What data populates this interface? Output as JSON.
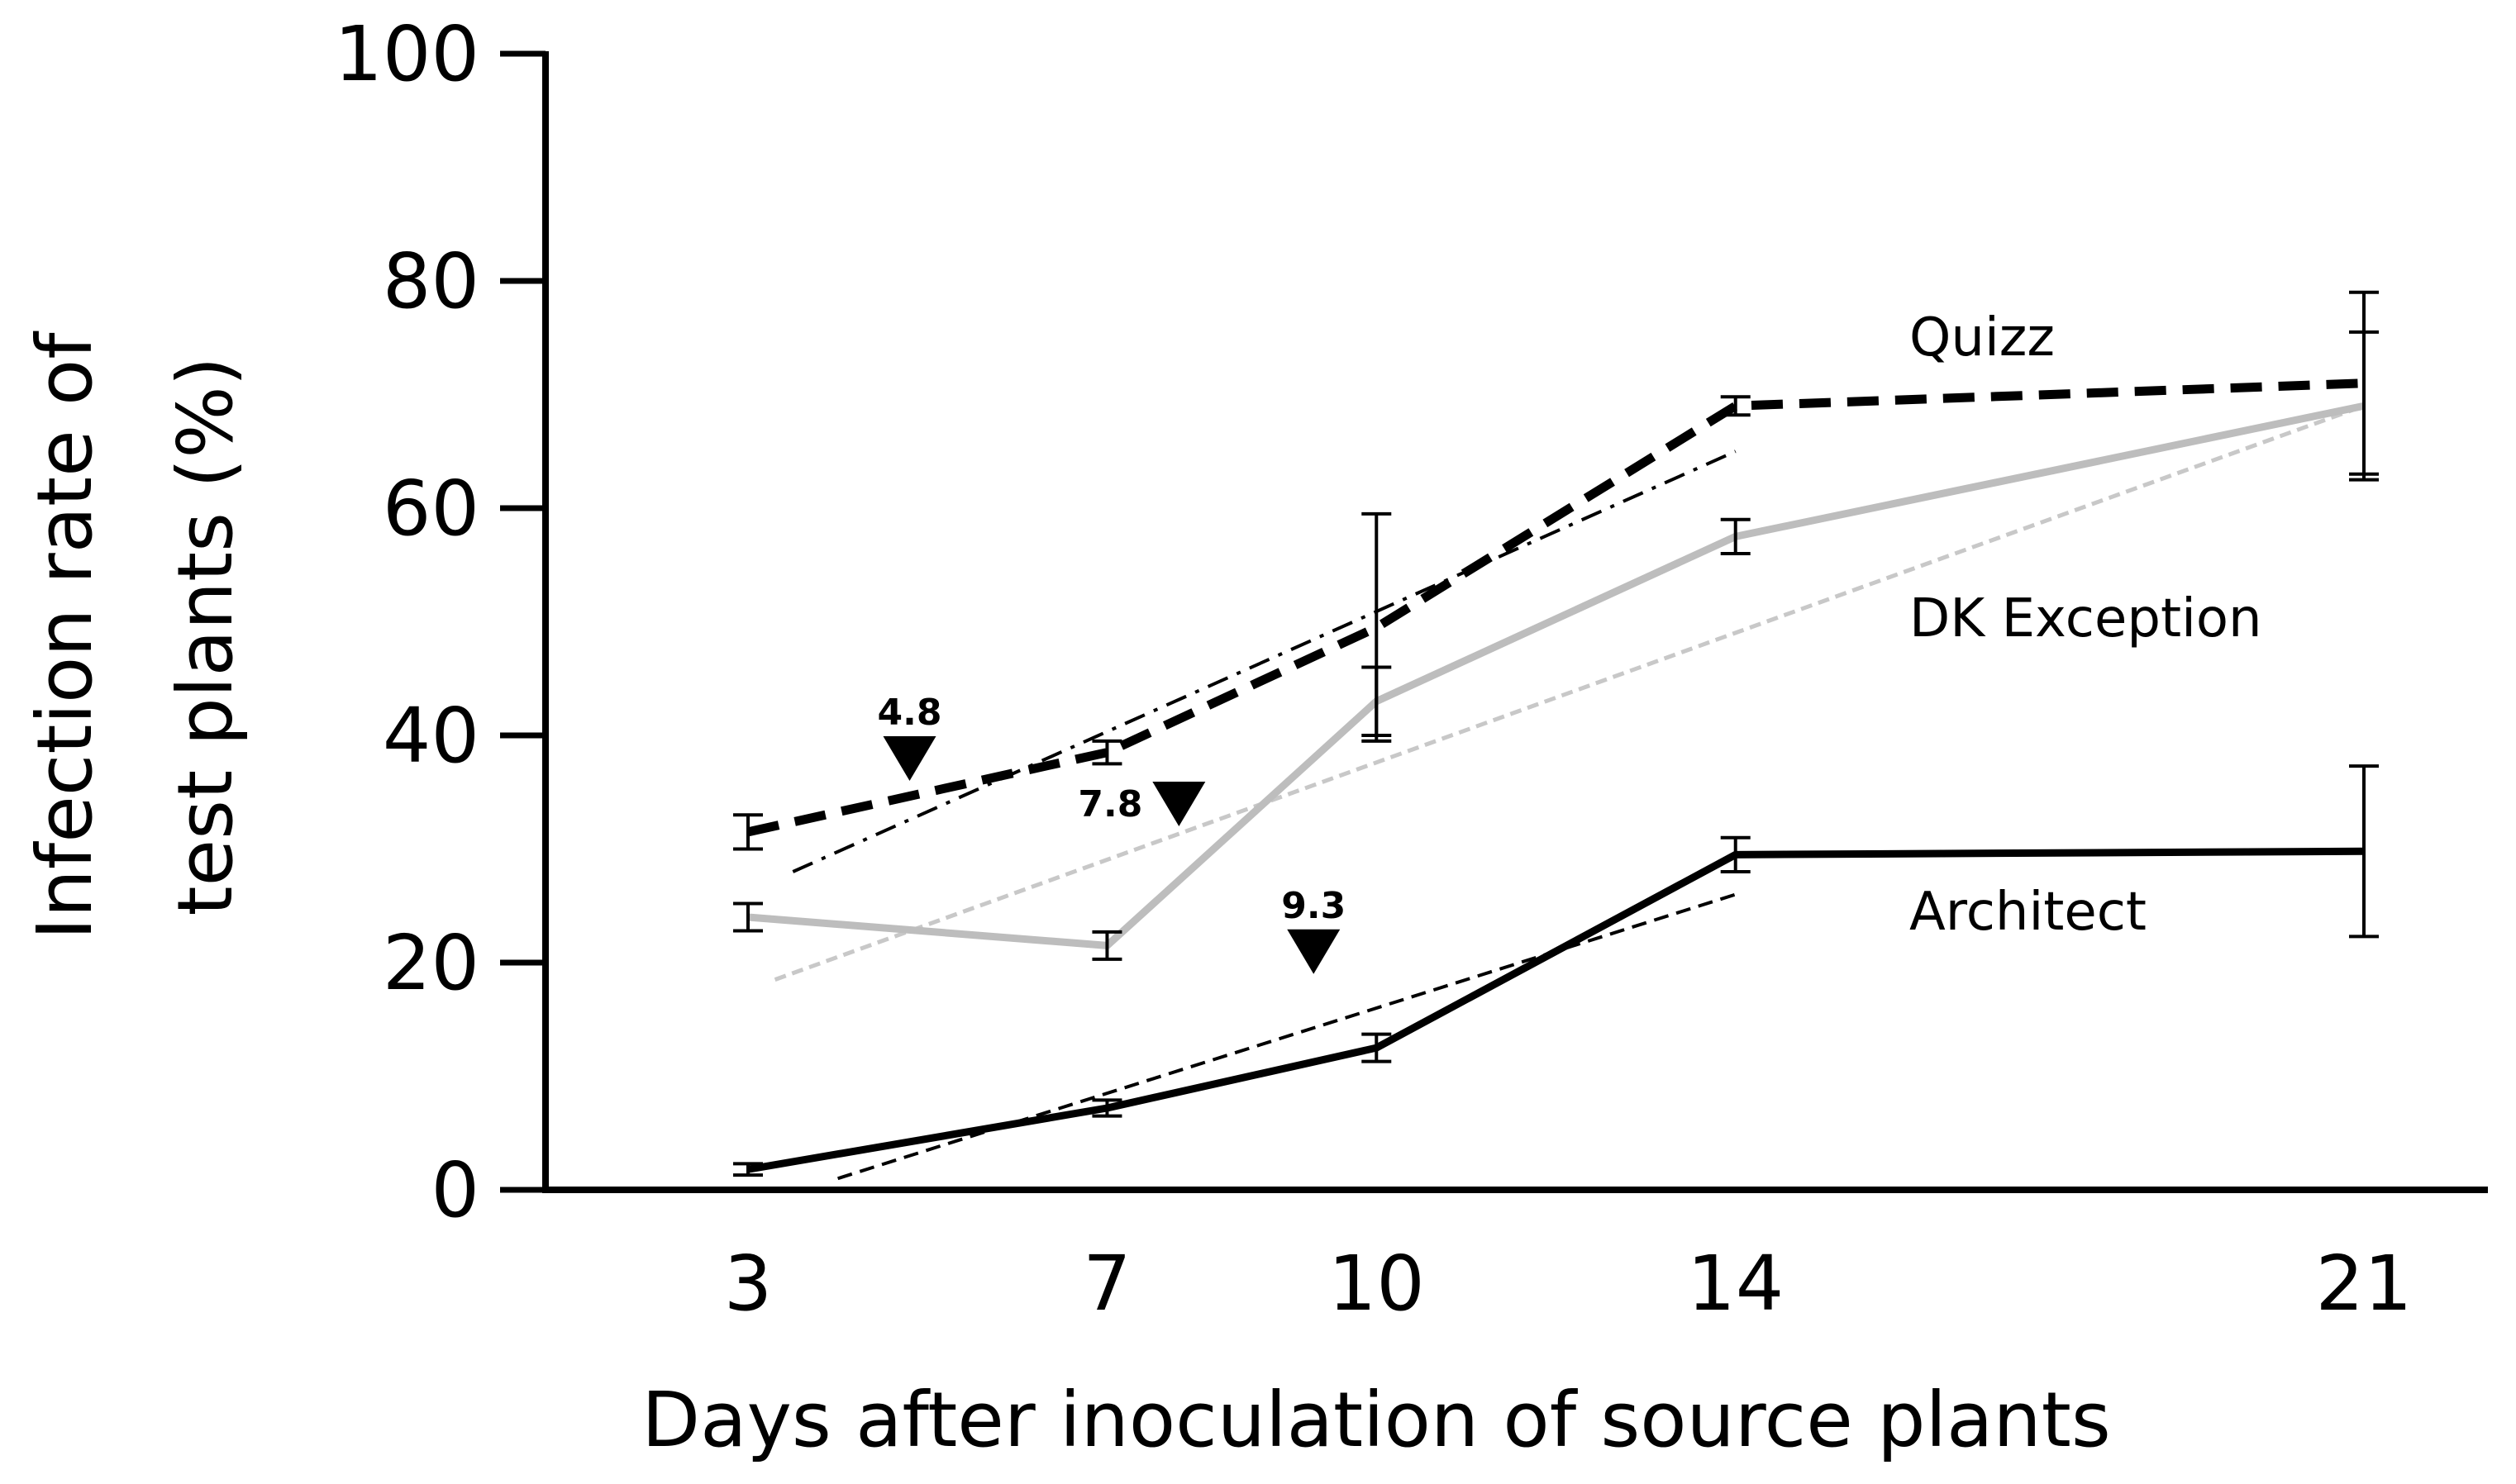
{
  "chart_data": {
    "type": "line",
    "title": "",
    "xlabel": "Days after inoculation of source plants",
    "ylabel_line1": "Infection rate of",
    "ylabel_line2": "test plants (%)",
    "x": [
      3,
      7,
      10,
      14,
      21
    ],
    "x_tick_labels": [
      "3",
      "7",
      "10",
      "14",
      "21"
    ],
    "y_ticks": [
      0,
      20,
      40,
      60,
      80,
      100
    ],
    "y_tick_labels": [
      "0",
      "20",
      "40",
      "60",
      "80",
      "100"
    ],
    "xlim": [
      0.5,
      22.5
    ],
    "ylim": [
      0,
      100
    ],
    "grid": false,
    "legend": "inline labels",
    "series": [
      {
        "name": "Quizz",
        "color": "#000000",
        "style": "dashed",
        "values": [
          31.5,
          38.5,
          49.5,
          69,
          71
        ],
        "errors": [
          1.5,
          1,
          10,
          0.8,
          8
        ],
        "trend": {
          "x": [
            3.5,
            14
          ],
          "y": [
            28,
            65
          ],
          "style": "dash-dot"
        }
      },
      {
        "name": "DK Exception",
        "color": "#bdbdbd",
        "style": "solid",
        "values": [
          24,
          21.5,
          43,
          57.5,
          69
        ],
        "errors": [
          1.2,
          1.2,
          3,
          1.5,
          6.5
        ],
        "trend": {
          "x": [
            3.3,
            21
          ],
          "y": [
            18.5,
            69
          ],
          "style": "dotted"
        }
      },
      {
        "name": "Architect",
        "color": "#000000",
        "style": "solid",
        "values": [
          1.8,
          7.2,
          12.5,
          29.5,
          29.8
        ],
        "errors": [
          0.5,
          0.7,
          1.2,
          1.5,
          7.5
        ],
        "trend": {
          "x": [
            4,
            14
          ],
          "y": [
            1,
            26
          ],
          "style": "dashed"
        }
      }
    ],
    "annotations": [
      {
        "text": "4.8",
        "x": 4.8,
        "y": 36,
        "marker": "down-triangle"
      },
      {
        "text": "7.8",
        "x": 7.8,
        "y": 32,
        "marker": "down-triangle"
      },
      {
        "text": "9.3",
        "x": 9.3,
        "y": 19,
        "marker": "down-triangle"
      }
    ]
  }
}
